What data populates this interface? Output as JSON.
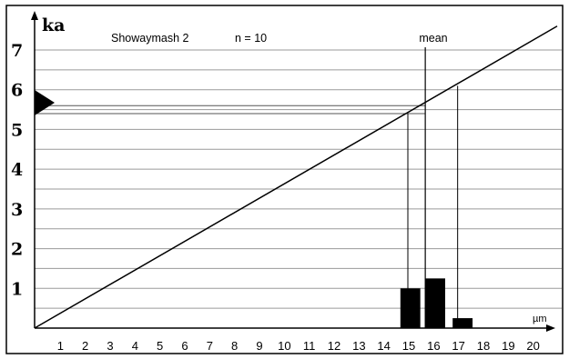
{
  "chart_data": {
    "type": "bar",
    "title": "Showaymash 2",
    "sample_size": "n = 10",
    "ylabel": "ka",
    "xlabel": "µm",
    "xlim": [
      0,
      21
    ],
    "ylim": [
      0,
      7.6
    ],
    "x_ticks": [
      "1",
      "2",
      "3",
      "4",
      "5",
      "6",
      "7",
      "8",
      "9",
      "10",
      "11",
      "12",
      "13",
      "14",
      "15",
      "16",
      "17",
      "18",
      "19",
      "20"
    ],
    "y_ticks": [
      "1",
      "2",
      "3",
      "4",
      "5",
      "6",
      "7"
    ],
    "bars": [
      {
        "x_center": 15.1,
        "width": 0.8,
        "value": 1.0
      },
      {
        "x_center": 16.1,
        "width": 0.8,
        "value": 1.25
      },
      {
        "x_center": 17.2,
        "width": 0.8,
        "value": 0.25
      }
    ],
    "regression_line": {
      "from": [
        0,
        0
      ],
      "to": [
        21,
        7.6
      ]
    },
    "mean_label": "mean",
    "mean_x": 15.7,
    "mean_age": 5.6,
    "range_x": [
      15.0,
      17.0
    ],
    "range_age": [
      5.4,
      6.1
    ],
    "grid": true
  }
}
